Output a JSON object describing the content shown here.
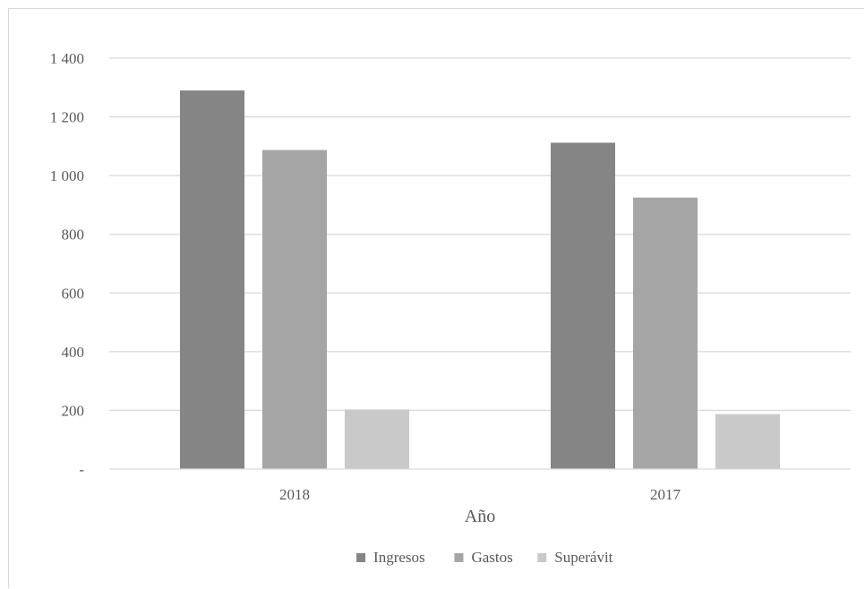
{
  "chart_data": {
    "type": "bar",
    "categories": [
      "2018",
      "2017"
    ],
    "series": [
      {
        "name": "Ingresos",
        "values": [
          1290,
          1112
        ],
        "color": "#858585"
      },
      {
        "name": "Gastos",
        "values": [
          1087,
          925
        ],
        "color": "#a5a5a5"
      },
      {
        "name": "Superávit",
        "values": [
          203,
          187
        ],
        "color": "#c9c9c9"
      }
    ],
    "title": "",
    "xlabel": "Año",
    "ylabel": "",
    "ylim": [
      0,
      1400
    ],
    "yticks": [
      {
        "value": 0,
        "label": "-"
      },
      {
        "value": 200,
        "label": "200"
      },
      {
        "value": 400,
        "label": "400"
      },
      {
        "value": 600,
        "label": "600"
      },
      {
        "value": 800,
        "label": "800"
      },
      {
        "value": 1000,
        "label": "1 000"
      },
      {
        "value": 1200,
        "label": "1 200"
      },
      {
        "value": 1400,
        "label": "1 400"
      }
    ],
    "grid": true,
    "gridline_color": "#d9d9d9",
    "legend_position": "bottom"
  }
}
